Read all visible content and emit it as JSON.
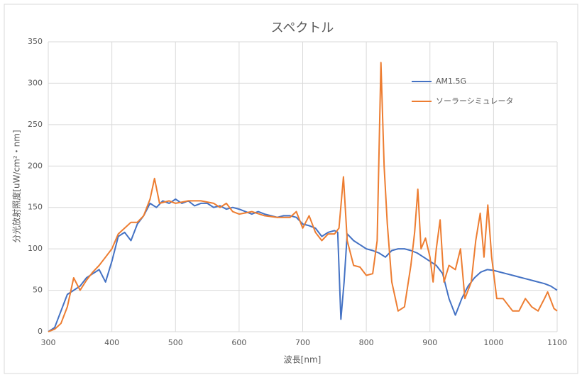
{
  "chart_data": {
    "type": "line",
    "title": "スペクトル",
    "x_label": "波長[nm]",
    "y_label": "分光放射照度[uW/cm²・nm]",
    "xlim": [
      300,
      1100
    ],
    "xticks": [
      300,
      400,
      500,
      600,
      700,
      800,
      900,
      1000,
      1100
    ],
    "ylim": [
      0,
      350
    ],
    "yticks": [
      0,
      50,
      100,
      150,
      200,
      250,
      300,
      350
    ],
    "grid": true,
    "legend": "upper right",
    "series": [
      {
        "name": "AM1.5G",
        "color": "#4472c4",
        "x": [
          300,
          310,
          320,
          330,
          340,
          350,
          360,
          370,
          380,
          390,
          400,
          410,
          420,
          430,
          440,
          450,
          460,
          470,
          480,
          490,
          500,
          510,
          520,
          530,
          540,
          550,
          560,
          570,
          580,
          590,
          600,
          610,
          620,
          630,
          640,
          650,
          660,
          670,
          680,
          690,
          700,
          710,
          720,
          730,
          740,
          750,
          755,
          760,
          765,
          770,
          780,
          790,
          800,
          810,
          820,
          830,
          840,
          850,
          860,
          870,
          880,
          890,
          900,
          910,
          920,
          930,
          940,
          950,
          960,
          970,
          980,
          990,
          1000,
          1010,
          1020,
          1030,
          1040,
          1050,
          1060,
          1070,
          1080,
          1090,
          1100
        ],
        "values": [
          0,
          5,
          25,
          45,
          50,
          55,
          65,
          70,
          75,
          60,
          85,
          115,
          120,
          110,
          130,
          140,
          155,
          150,
          158,
          155,
          160,
          155,
          158,
          152,
          155,
          155,
          150,
          152,
          148,
          150,
          148,
          145,
          142,
          145,
          142,
          140,
          138,
          140,
          140,
          138,
          130,
          128,
          125,
          115,
          120,
          122,
          120,
          15,
          60,
          118,
          110,
          105,
          100,
          98,
          95,
          90,
          98,
          100,
          100,
          98,
          95,
          90,
          85,
          80,
          70,
          40,
          20,
          40,
          55,
          65,
          72,
          75,
          74,
          72,
          70,
          68,
          66,
          64,
          62,
          60,
          58,
          55,
          50
        ]
      },
      {
        "name": "ソーラーシミュレータ",
        "color": "#ed7d31",
        "x": [
          300,
          310,
          320,
          330,
          340,
          350,
          360,
          370,
          380,
          390,
          400,
          410,
          420,
          430,
          440,
          450,
          460,
          467,
          475,
          490,
          500,
          520,
          540,
          560,
          570,
          580,
          590,
          600,
          620,
          640,
          660,
          680,
          690,
          700,
          710,
          720,
          730,
          740,
          750,
          757,
          764,
          770,
          780,
          790,
          800,
          810,
          817,
          823,
          828,
          833,
          840,
          850,
          860,
          870,
          876,
          881,
          886,
          893,
          900,
          905,
          910,
          916,
          922,
          930,
          940,
          948,
          955,
          965,
          972,
          979,
          985,
          991,
          997,
          1005,
          1015,
          1030,
          1040,
          1050,
          1060,
          1070,
          1080,
          1085,
          1095,
          1100
        ],
        "values": [
          0,
          3,
          10,
          30,
          65,
          50,
          62,
          72,
          80,
          90,
          100,
          118,
          125,
          132,
          132,
          140,
          160,
          185,
          155,
          158,
          155,
          158,
          158,
          155,
          150,
          155,
          145,
          142,
          145,
          140,
          138,
          138,
          145,
          125,
          140,
          120,
          110,
          118,
          118,
          125,
          187,
          110,
          80,
          78,
          68,
          70,
          110,
          325,
          200,
          130,
          60,
          25,
          30,
          80,
          120,
          172,
          100,
          113,
          90,
          60,
          100,
          135,
          60,
          80,
          75,
          100,
          40,
          60,
          110,
          143,
          90,
          153,
          90,
          40,
          40,
          25,
          25,
          40,
          30,
          25,
          40,
          48,
          28,
          25
        ]
      }
    ]
  }
}
